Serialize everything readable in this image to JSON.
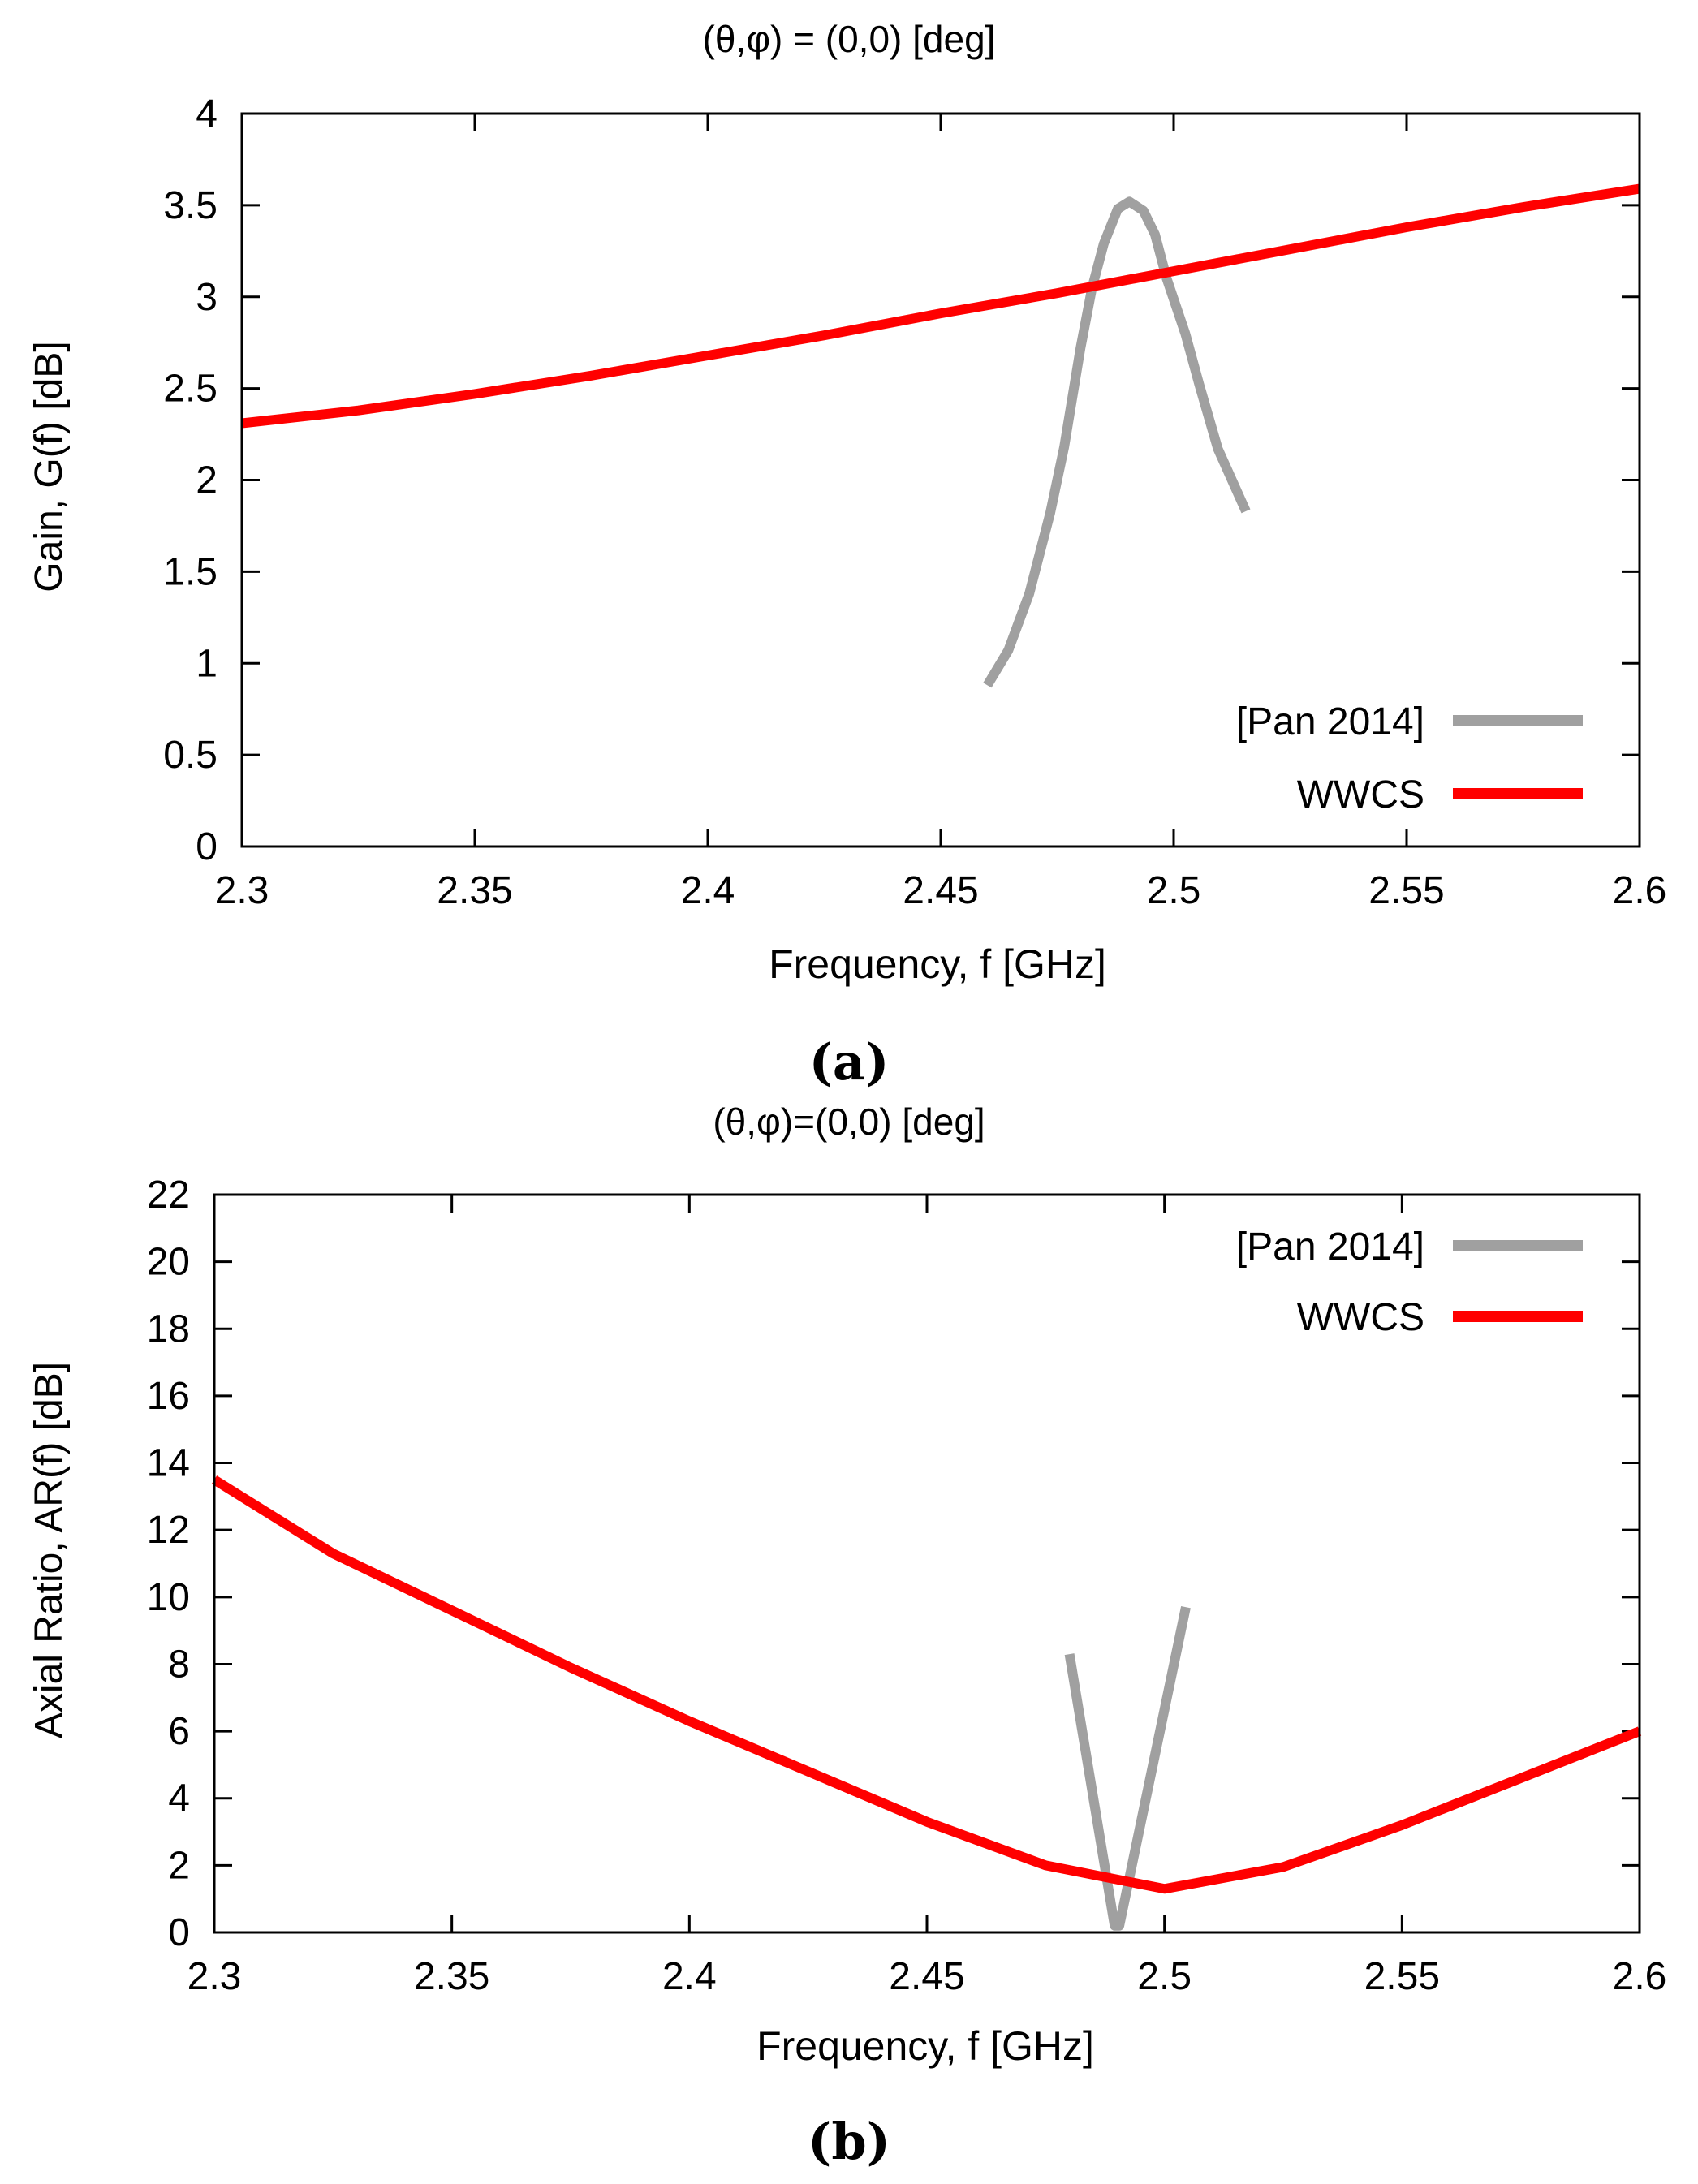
{
  "chart_data": [
    {
      "type": "line",
      "panel_label": "(a)",
      "title": "(θ,φ) = (0,0) [deg]",
      "xlabel": "Frequency, f [GHz]",
      "ylabel": "Gain, G(f) [dB]",
      "xlim": [
        2.3,
        2.6
      ],
      "ylim": [
        0,
        4
      ],
      "xticks": [
        2.3,
        2.35,
        2.4,
        2.45,
        2.5,
        2.55,
        2.6
      ],
      "xtick_labels": [
        "2.3",
        "2.35",
        "2.4",
        "2.45",
        "2.5",
        "2.55",
        "2.6"
      ],
      "yticks": [
        0,
        0.5,
        1,
        1.5,
        2,
        2.5,
        3,
        3.5,
        4
      ],
      "ytick_labels": [
        "0",
        "0.5",
        "1",
        "1.5",
        "2",
        "2.5",
        "3",
        "3.5",
        "4"
      ],
      "legend_position": "bottom-right",
      "grid": false,
      "series": [
        {
          "name": "[Pan 2014]",
          "color": "#a0a0a0",
          "x": [
            2.46,
            2.4645,
            2.469,
            2.4735,
            2.4765,
            2.48,
            2.4825,
            2.485,
            2.488,
            2.4905,
            2.4935,
            2.496,
            2.4985,
            2.5025,
            2.5055,
            2.5095,
            2.5155
          ],
          "y": [
            0.88,
            1.07,
            1.38,
            1.82,
            2.18,
            2.72,
            3.05,
            3.29,
            3.48,
            3.52,
            3.47,
            3.34,
            3.1,
            2.8,
            2.52,
            2.17,
            1.83
          ]
        },
        {
          "name": "WWCS",
          "color": "#ff0000",
          "x": [
            2.3,
            2.325,
            2.35,
            2.375,
            2.4,
            2.425,
            2.45,
            2.475,
            2.5,
            2.525,
            2.55,
            2.575,
            2.6
          ],
          "y": [
            2.31,
            2.38,
            2.47,
            2.57,
            2.68,
            2.79,
            2.91,
            3.02,
            3.14,
            3.26,
            3.38,
            3.49,
            3.59
          ]
        }
      ]
    },
    {
      "type": "line",
      "panel_label": "(b)",
      "title": "(θ,φ)=(0,0) [deg]",
      "xlabel": "Frequency, f [GHz]",
      "ylabel": "Axial Ratio, AR(f) [dB]",
      "xlim": [
        2.3,
        2.6
      ],
      "ylim": [
        0,
        22
      ],
      "xticks": [
        2.3,
        2.35,
        2.4,
        2.45,
        2.5,
        2.55,
        2.6
      ],
      "xtick_labels": [
        "2.3",
        "2.35",
        "2.4",
        "2.45",
        "2.5",
        "2.55",
        "2.6"
      ],
      "yticks": [
        0,
        2,
        4,
        6,
        8,
        10,
        12,
        14,
        16,
        18,
        20,
        22
      ],
      "ytick_labels": [
        "0",
        "2",
        "4",
        "6",
        "8",
        "10",
        "12",
        "14",
        "16",
        "18",
        "20",
        "22"
      ],
      "legend_position": "top-right",
      "grid": false,
      "series": [
        {
          "name": "[Pan 2014]",
          "color": "#a0a0a0",
          "x": [
            2.48,
            2.4895,
            2.4905,
            2.5045
          ],
          "y": [
            8.3,
            0.2,
            0.2,
            9.7
          ]
        },
        {
          "name": "WWCS",
          "color": "#ff0000",
          "x": [
            2.3,
            2.325,
            2.35,
            2.375,
            2.4,
            2.425,
            2.45,
            2.475,
            2.5,
            2.525,
            2.55,
            2.575,
            2.6
          ],
          "y": [
            13.5,
            11.3,
            9.6,
            7.9,
            6.3,
            4.8,
            3.3,
            2.0,
            1.3,
            1.95,
            3.2,
            4.6,
            6.0
          ]
        }
      ]
    }
  ]
}
